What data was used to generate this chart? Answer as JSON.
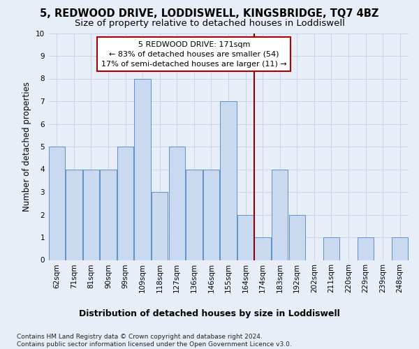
{
  "title": "5, REDWOOD DRIVE, LODDISWELL, KINGSBRIDGE, TQ7 4BZ",
  "subtitle": "Size of property relative to detached houses in Loddiswell",
  "xlabel": "Distribution of detached houses by size in Loddiswell",
  "ylabel": "Number of detached properties",
  "bins": [
    "62sqm",
    "71sqm",
    "81sqm",
    "90sqm",
    "99sqm",
    "109sqm",
    "118sqm",
    "127sqm",
    "136sqm",
    "146sqm",
    "155sqm",
    "164sqm",
    "174sqm",
    "183sqm",
    "192sqm",
    "202sqm",
    "211sqm",
    "220sqm",
    "229sqm",
    "239sqm",
    "248sqm"
  ],
  "values": [
    5,
    4,
    4,
    4,
    5,
    8,
    3,
    5,
    4,
    4,
    7,
    2,
    1,
    4,
    2,
    0,
    1,
    0,
    1,
    0,
    1
  ],
  "bar_color": "#c9d9f0",
  "bar_edge_color": "#6090c8",
  "vline_x_index": 11.5,
  "vline_color": "#8b0000",
  "annotation_line1": "5 REDWOOD DRIVE: 171sqm",
  "annotation_line2": "← 83% of detached houses are smaller (54)",
  "annotation_line3": "17% of semi-detached houses are larger (11) →",
  "annotation_box_color": "#ffffff",
  "annotation_box_edge_color": "#aa0000",
  "ylim": [
    0,
    10
  ],
  "yticks": [
    0,
    1,
    2,
    3,
    4,
    5,
    6,
    7,
    8,
    9,
    10
  ],
  "grid_color": "#c8d4e8",
  "bg_color": "#e8eef8",
  "footer": "Contains HM Land Registry data © Crown copyright and database right 2024.\nContains public sector information licensed under the Open Government Licence v3.0.",
  "title_fontsize": 10.5,
  "subtitle_fontsize": 9.5,
  "xlabel_fontsize": 9,
  "ylabel_fontsize": 8.5,
  "tick_fontsize": 7.5,
  "annotation_fontsize": 8,
  "footer_fontsize": 6.5
}
